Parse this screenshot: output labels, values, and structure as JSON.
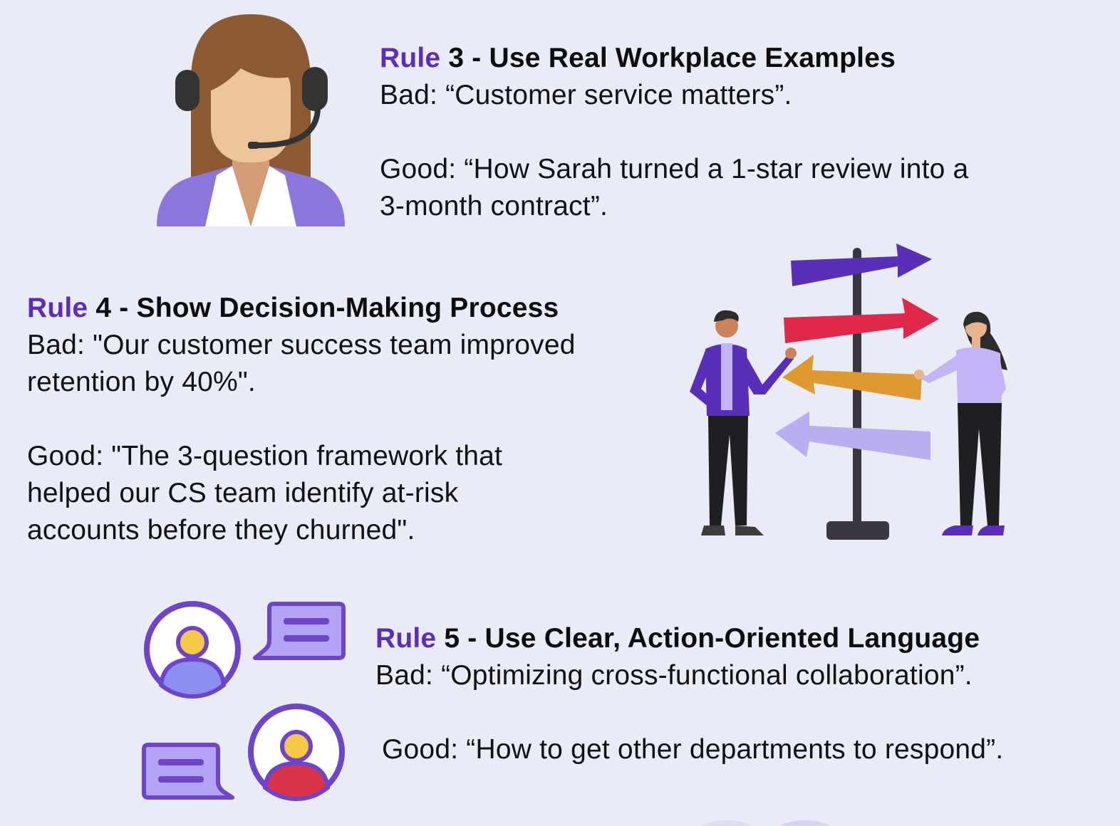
{
  "rules": [
    {
      "rule_word": "Rule",
      "title_rest": "3 - Use Real Workplace Examples",
      "bad_lines": [
        "Bad: “Customer service matters”."
      ],
      "good_lines": [
        "Good: “How Sarah turned a 1-star review into a",
        "3-month contract”."
      ]
    },
    {
      "rule_word": "Rule",
      "title_rest": "4 - Show Decision-Making Process",
      "bad_lines": [
        "Bad: \"Our customer success team improved",
        "retention by 40%\"."
      ],
      "good_lines": [
        "Good: \"The 3-question framework that",
        "helped our CS team identify at-risk",
        "accounts before they churned\"."
      ]
    },
    {
      "rule_word": "Rule",
      "title_rest": "5 - Use Clear, Action-Oriented Language",
      "bad_lines": [
        "Bad: “Optimizing cross-functional collaboration”."
      ],
      "good_lines": [
        "Good: “How to get other departments to respond”."
      ]
    }
  ],
  "colors": {
    "background": "#e9ecf6",
    "accent_purple": "#5b2db8",
    "text": "#0d0d0d",
    "arrow_purple": "#5a2fb8",
    "arrow_red": "#e0284a",
    "arrow_orange": "#de9a30",
    "arrow_lavender": "#b8aef0"
  },
  "icons": {
    "rule3": "customer-service-agent-icon",
    "rule4": "signpost-decision-icon",
    "rule5": "conversation-users-icon"
  }
}
